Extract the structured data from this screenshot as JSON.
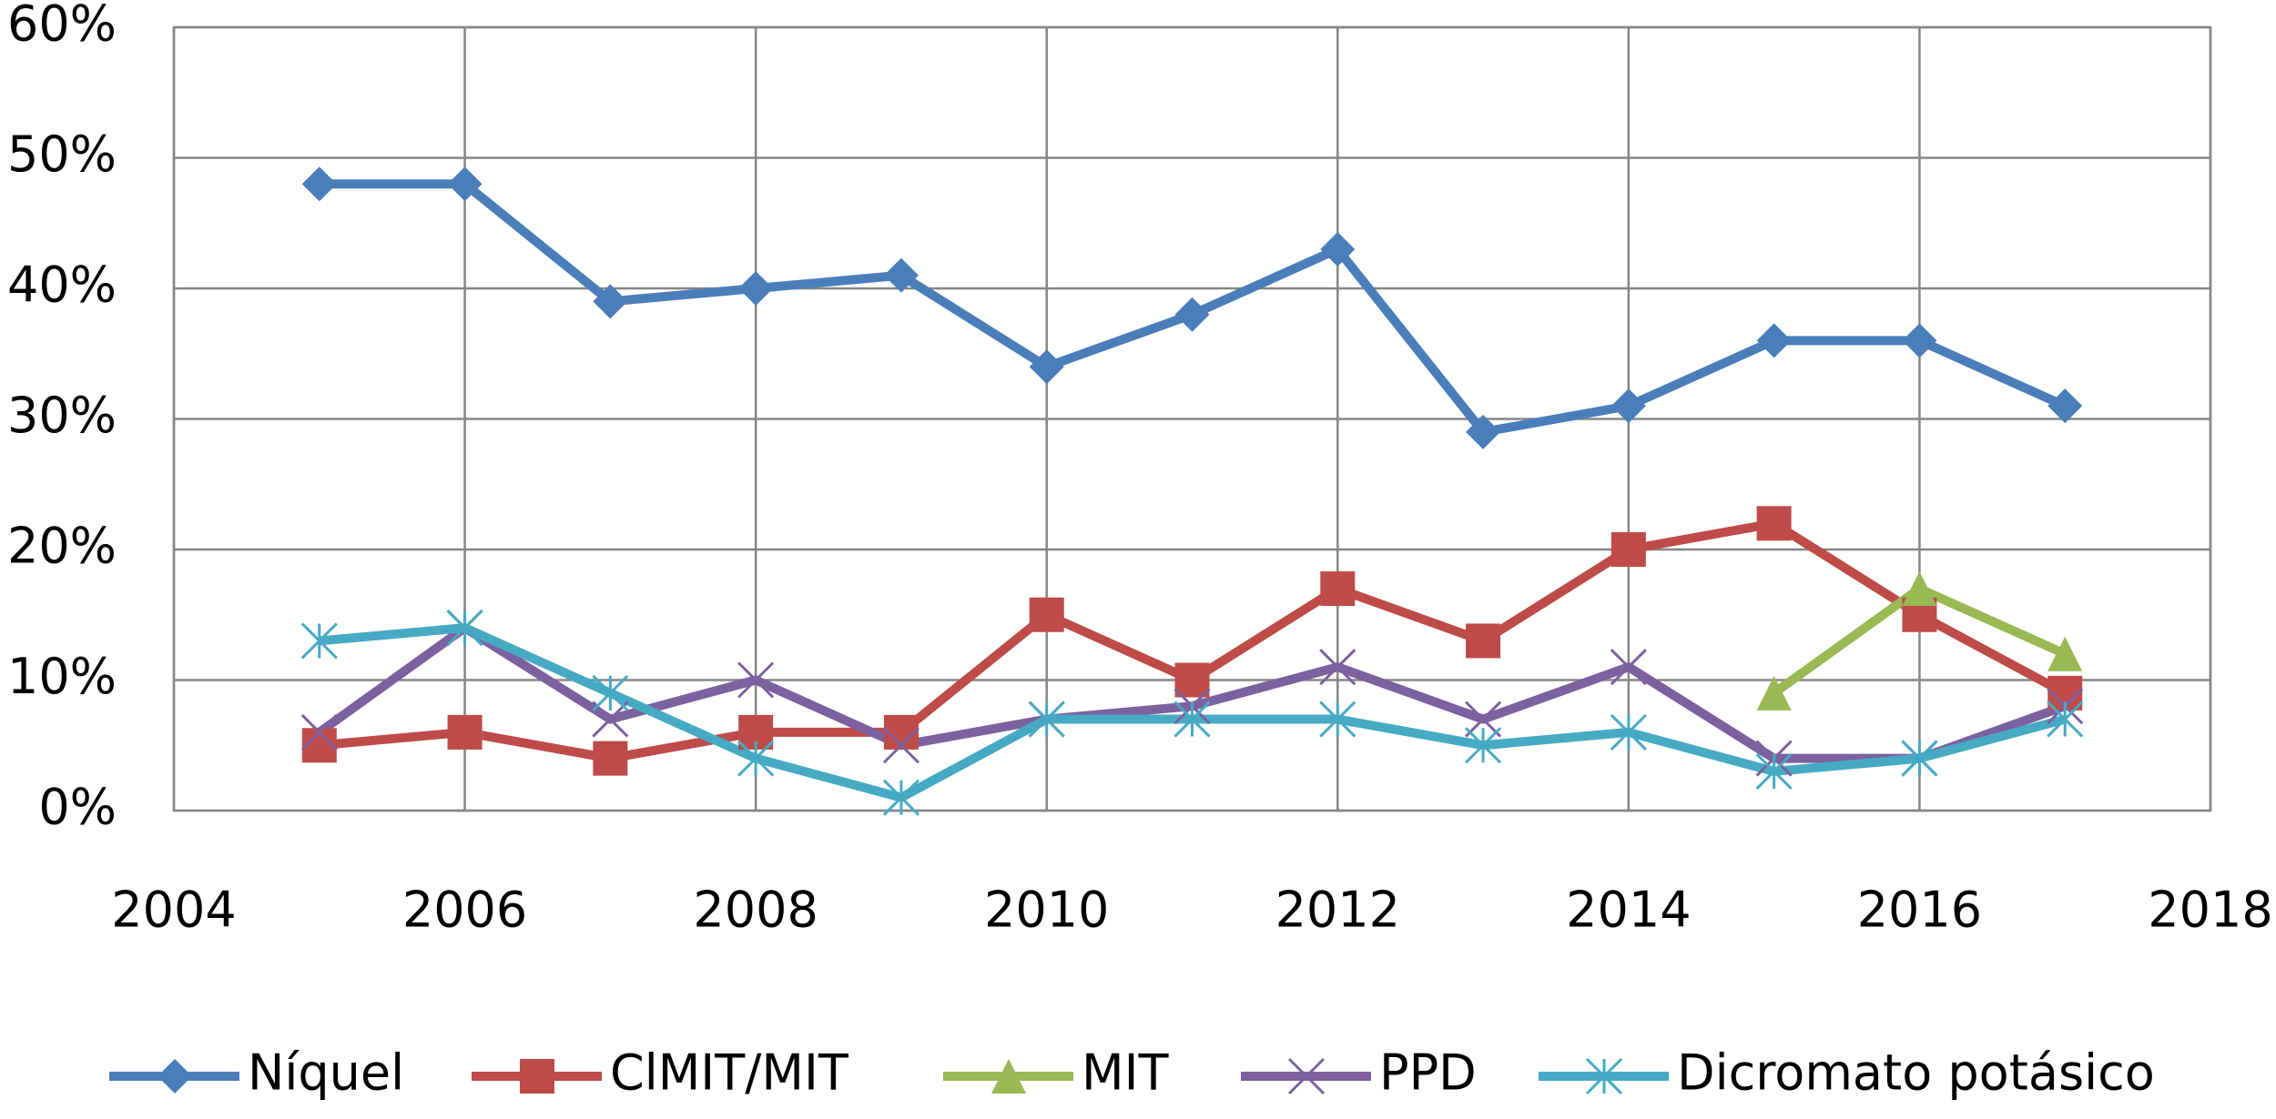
{
  "chart_data": {
    "type": "line",
    "x": [
      2005,
      2006,
      2007,
      2008,
      2009,
      2010,
      2011,
      2012,
      2013,
      2014,
      2015,
      2016,
      2017
    ],
    "xlim": [
      2004,
      2018
    ],
    "xticks": [
      2004,
      2006,
      2008,
      2010,
      2012,
      2014,
      2016,
      2018
    ],
    "ylim": [
      0,
      60
    ],
    "yticks": [
      {
        "value": 0,
        "label": "0%"
      },
      {
        "value": 10,
        "label": "10%"
      },
      {
        "value": 20,
        "label": "20%"
      },
      {
        "value": 30,
        "label": "30%"
      },
      {
        "value": 40,
        "label": "40%"
      },
      {
        "value": 50,
        "label": "50%"
      },
      {
        "value": 60,
        "label": "60%"
      }
    ],
    "grid": true,
    "legend": "bottom",
    "series": [
      {
        "name": "Níquel",
        "color": "#4a7ebb",
        "marker": "diamond",
        "values": [
          48,
          48,
          39,
          40,
          41,
          34,
          38,
          43,
          29,
          31,
          36,
          36,
          31
        ]
      },
      {
        "name": "ClMIT/MIT",
        "color": "#be4b48",
        "marker": "square",
        "values": [
          5,
          6,
          4,
          6,
          6,
          15,
          10,
          17,
          13,
          20,
          22,
          15,
          9
        ]
      },
      {
        "name": "MIT",
        "color": "#98b954",
        "marker": "triangle",
        "values": [
          null,
          null,
          null,
          null,
          null,
          null,
          null,
          null,
          null,
          null,
          9,
          17,
          12
        ]
      },
      {
        "name": "PPD",
        "color": "#7d60a0",
        "marker": "x",
        "values": [
          6,
          14,
          7,
          10,
          5,
          7,
          8,
          11,
          7,
          11,
          4,
          4,
          8
        ]
      },
      {
        "name": "Dicromato potásico",
        "color": "#46aac5",
        "marker": "star",
        "values": [
          13,
          14,
          9,
          4,
          1,
          7,
          7,
          7,
          5,
          6,
          3,
          4,
          7
        ]
      }
    ]
  }
}
